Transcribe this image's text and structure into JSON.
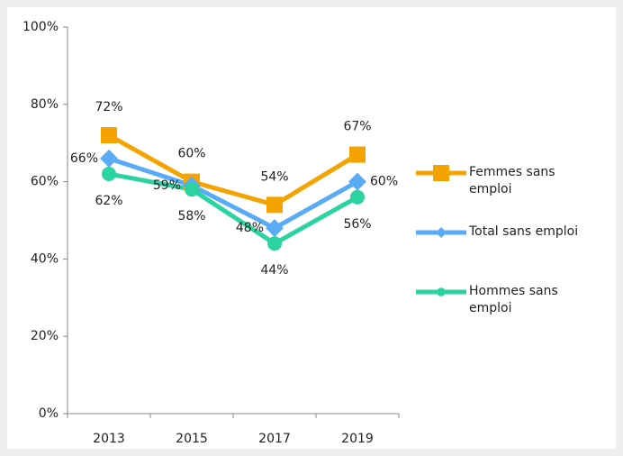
{
  "chart_data": {
    "type": "line",
    "categories": [
      "2013",
      "2015",
      "2017",
      "2019"
    ],
    "series": [
      {
        "name": "Femmes sans emploi",
        "color": "#f5a300",
        "marker": "square",
        "values": [
          72,
          60,
          54,
          67
        ],
        "value_labels": [
          "72%",
          "60%",
          "54%",
          "67%"
        ]
      },
      {
        "name": "Total sans emploi",
        "color": "#5aabf5",
        "marker": "diamond",
        "values": [
          66,
          59,
          48,
          60
        ],
        "value_labels": [
          "66%",
          "59%",
          "48%",
          "60%"
        ]
      },
      {
        "name": "Hommes sans emploi",
        "color": "#2ad3a0",
        "marker": "circle",
        "values": [
          62,
          58,
          44,
          56
        ],
        "value_labels": [
          "62%",
          "58%",
          "44%",
          "56%"
        ]
      }
    ],
    "ylim": [
      0,
      100
    ],
    "yticks": [
      {
        "value": 0,
        "label": "0%"
      },
      {
        "value": 20,
        "label": "20%"
      },
      {
        "value": 40,
        "label": "40%"
      },
      {
        "value": 60,
        "label": "60%"
      },
      {
        "value": 80,
        "label": "80%"
      },
      {
        "value": 100,
        "label": "100%"
      }
    ],
    "grid": false,
    "legend": "right"
  }
}
